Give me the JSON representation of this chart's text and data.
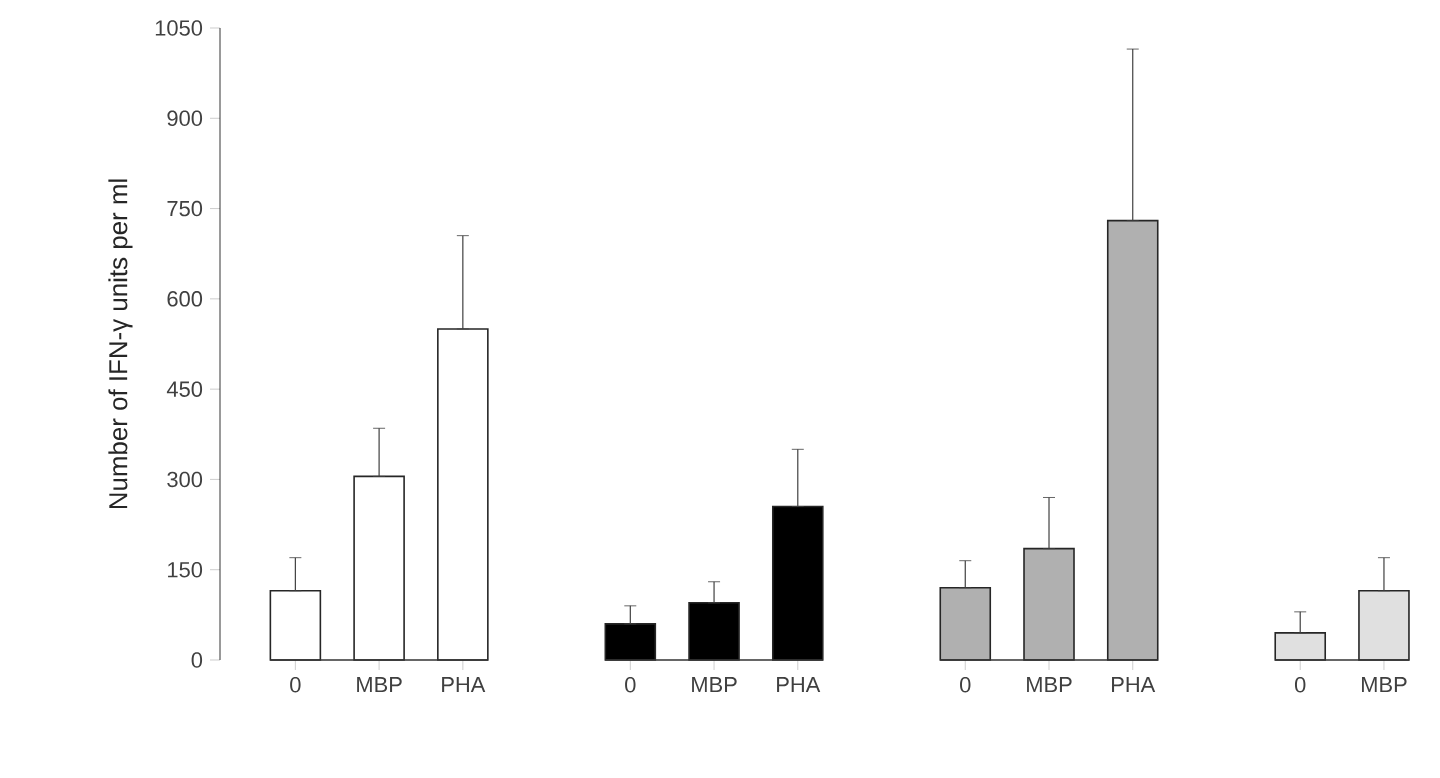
{
  "chart_data": {
    "type": "bar",
    "ylabel": "Number of IFN-γ units per ml",
    "categories": [
      "0",
      "MBP",
      "PHA",
      "0",
      "MBP",
      "PHA",
      "0",
      "MBP",
      "PHA",
      "0",
      "MBP"
    ],
    "ylim": [
      0,
      1050
    ],
    "yticks": [
      0,
      150,
      300,
      450,
      600,
      750,
      900,
      1050
    ],
    "grid": false,
    "series": [
      {
        "color": "#ffffff",
        "values": [
          115,
          305,
          550,
          null,
          null,
          null,
          null,
          null,
          null,
          null,
          null
        ],
        "errors": [
          [
            115,
            170
          ],
          [
            305,
            385
          ],
          [
            550,
            705
          ],
          null,
          null,
          null,
          null,
          null,
          null,
          null,
          null
        ]
      },
      {
        "color": "#000000",
        "values": [
          null,
          null,
          null,
          60,
          95,
          255,
          null,
          null,
          null,
          null,
          null
        ],
        "errors": [
          null,
          null,
          null,
          [
            60,
            90
          ],
          [
            95,
            130
          ],
          [
            255,
            350
          ],
          null,
          null,
          null,
          null,
          null
        ]
      },
      {
        "color": "#b0b0b0",
        "values": [
          null,
          null,
          null,
          null,
          null,
          null,
          120,
          185,
          730,
          null,
          null
        ],
        "errors": [
          null,
          null,
          null,
          null,
          null,
          null,
          [
            120,
            165
          ],
          [
            185,
            270
          ],
          [
            730,
            1015
          ],
          null,
          null
        ]
      },
      {
        "color": "#e0e0e0",
        "values": [
          null,
          null,
          null,
          null,
          null,
          null,
          null,
          null,
          null,
          45,
          115
        ],
        "errors": [
          null,
          null,
          null,
          null,
          null,
          null,
          null,
          null,
          null,
          [
            45,
            80
          ],
          [
            115,
            170
          ]
        ]
      }
    ]
  }
}
